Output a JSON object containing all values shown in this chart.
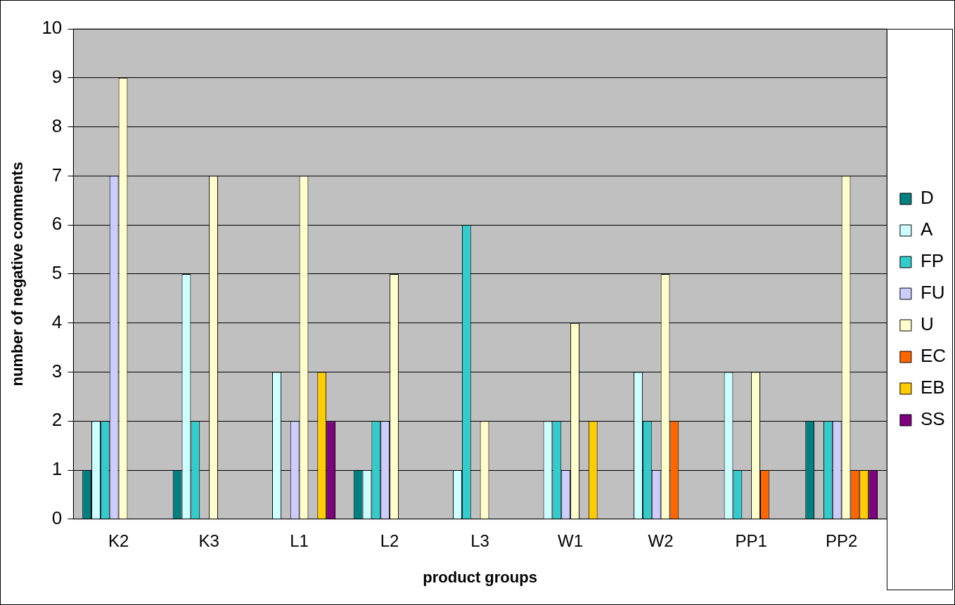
{
  "chart_data": {
    "type": "bar",
    "xlabel": "product groups",
    "ylabel": "number of negative comments",
    "categories": [
      "K2",
      "K3",
      "L1",
      "L2",
      "L3",
      "W1",
      "W2",
      "PP1",
      "PP2"
    ],
    "series": [
      {
        "name": "D",
        "color": "#008080",
        "values": [
          1,
          1,
          0,
          1,
          0,
          0,
          0,
          0,
          2
        ]
      },
      {
        "name": "A",
        "color": "#ccffff",
        "values": [
          2,
          5,
          3,
          1,
          1,
          2,
          3,
          3,
          0
        ]
      },
      {
        "name": "FP",
        "color": "#33cccc",
        "values": [
          2,
          2,
          0,
          2,
          6,
          2,
          2,
          1,
          2
        ]
      },
      {
        "name": "FU",
        "color": "#ccccff",
        "values": [
          7,
          0,
          2,
          2,
          0,
          1,
          1,
          0,
          2
        ]
      },
      {
        "name": "U",
        "color": "#ffffcc",
        "values": [
          9,
          7,
          7,
          5,
          2,
          4,
          5,
          3,
          7
        ]
      },
      {
        "name": "EC",
        "color": "#ff6600",
        "values": [
          0,
          0,
          0,
          0,
          0,
          0,
          2,
          1,
          1
        ]
      },
      {
        "name": "EB",
        "color": "#ffcc00",
        "values": [
          0,
          0,
          3,
          0,
          0,
          2,
          0,
          0,
          1
        ]
      },
      {
        "name": "SS",
        "color": "#800080",
        "values": [
          0,
          0,
          2,
          0,
          0,
          0,
          0,
          0,
          1
        ]
      }
    ],
    "ylim": [
      0,
      10
    ],
    "yticks": [
      0,
      1,
      2,
      3,
      4,
      5,
      6,
      7,
      8,
      9,
      10
    ],
    "grid": "y",
    "legend": "right"
  }
}
